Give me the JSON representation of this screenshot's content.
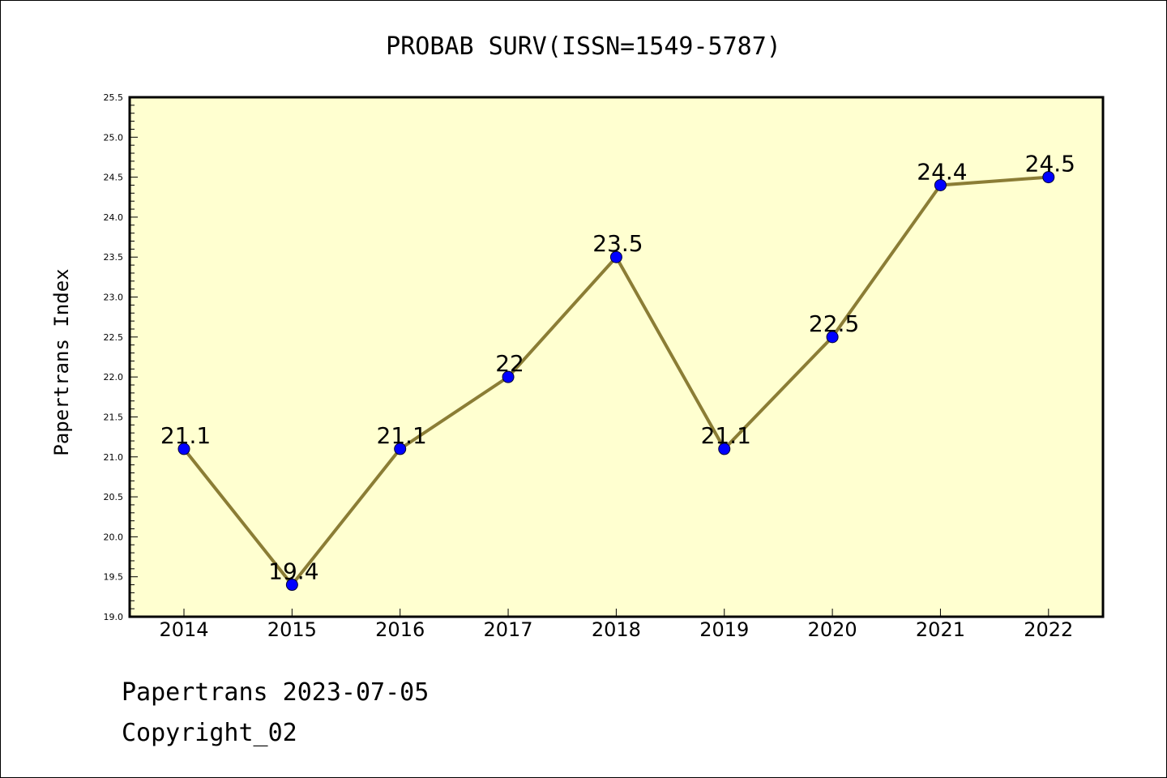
{
  "chart_data": {
    "type": "line",
    "title": "PROBAB SURV(ISSN=1549-5787)",
    "ylabel": "Papertrans Index",
    "xlabel": "",
    "categories": [
      "2014",
      "2015",
      "2016",
      "2017",
      "2018",
      "2019",
      "2020",
      "2021",
      "2022"
    ],
    "series": [
      {
        "values": [
          21.1,
          19.4,
          21.1,
          22.0,
          23.5,
          21.1,
          22.5,
          24.4,
          24.5
        ],
        "labels": [
          "21.1",
          "19.4",
          "21.1",
          "22",
          "23.5",
          "21.1",
          "22.5",
          "24.4",
          "24.5"
        ]
      }
    ],
    "ylim": [
      19.0,
      25.5
    ],
    "yticks": [
      "19.0",
      "19.5",
      "20.0",
      "20.5",
      "21.0",
      "21.5",
      "22.0",
      "22.5",
      "23.0",
      "23.5",
      "24.0",
      "24.5",
      "25.0",
      "25.5"
    ],
    "grid": false,
    "legend": "none",
    "colors": {
      "line": "#8b7d35",
      "marker": "#0000ff",
      "plot_background": "#ffffd0"
    }
  },
  "footer": {
    "line1": "Papertrans 2023-07-05",
    "line2": "Copyright_02"
  }
}
